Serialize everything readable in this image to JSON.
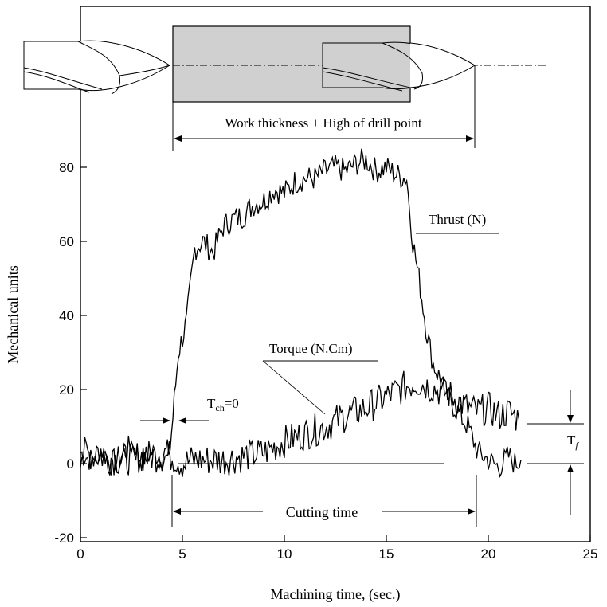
{
  "chart_data": {
    "type": "line",
    "xlabel": "Machining time, (sec.)",
    "ylabel": "Mechanical units",
    "xlim": [
      0,
      25
    ],
    "ylim": [
      -20,
      90
    ],
    "x_ticks": [
      "0",
      "5",
      "10",
      "15",
      "20",
      "25"
    ],
    "y_ticks": [
      "-20",
      "0",
      "20",
      "40",
      "60",
      "80"
    ],
    "grid": false,
    "series": [
      {
        "name": "Thrust (N)",
        "x": [
          0,
          0.5,
          1,
          1.5,
          2,
          2.5,
          3,
          3.5,
          4,
          4.4,
          4.8,
          5.2,
          5.6,
          6,
          6.5,
          7,
          7.5,
          8,
          8.5,
          9,
          9.5,
          10,
          10.5,
          11,
          11.5,
          12,
          12.5,
          13,
          13.5,
          14,
          14.5,
          15,
          15.5,
          16,
          16.3,
          16.6,
          17,
          17.3,
          17.7,
          18,
          18.5,
          19,
          19.5,
          20,
          20.5,
          21,
          21.3,
          21.6
        ],
        "values": [
          3,
          1,
          4,
          0,
          2,
          5,
          1,
          3,
          2,
          4,
          30,
          38,
          58,
          60,
          57,
          64,
          66,
          67,
          70,
          71,
          74,
          73,
          76,
          77,
          77,
          79,
          80,
          79,
          81,
          82,
          79,
          80,
          78,
          77,
          60,
          50,
          35,
          27,
          22,
          18,
          14,
          10,
          3,
          1,
          -1,
          2,
          0,
          1
        ]
      },
      {
        "name": "Torque (N.Cm)",
        "x": [
          0,
          1,
          2,
          3,
          4,
          4.5,
          5,
          5.5,
          6,
          7,
          8,
          9,
          10,
          11,
          12,
          13,
          14,
          15,
          16,
          16.5,
          17,
          17.5,
          18,
          18.5,
          19,
          19.5,
          20,
          20.5,
          21,
          21.5
        ],
        "values": [
          3,
          2,
          1,
          2,
          2,
          2,
          0,
          1,
          1,
          1,
          2,
          3,
          6,
          8,
          10,
          13,
          15,
          18,
          21,
          22,
          21,
          20,
          19,
          17,
          15,
          14,
          15,
          13,
          14,
          12
        ]
      }
    ],
    "annotations": {
      "work_label": "Work thickness + High of drill point",
      "thrust_label": "Thrust (N)",
      "torque_label": "Torque (N.Cm)",
      "tch_main": "T",
      "tch_sub": "ch",
      "tch_rest": "=0",
      "cutting_label": "Cutting time",
      "tf_main": "T",
      "tf_sub": "f"
    }
  }
}
